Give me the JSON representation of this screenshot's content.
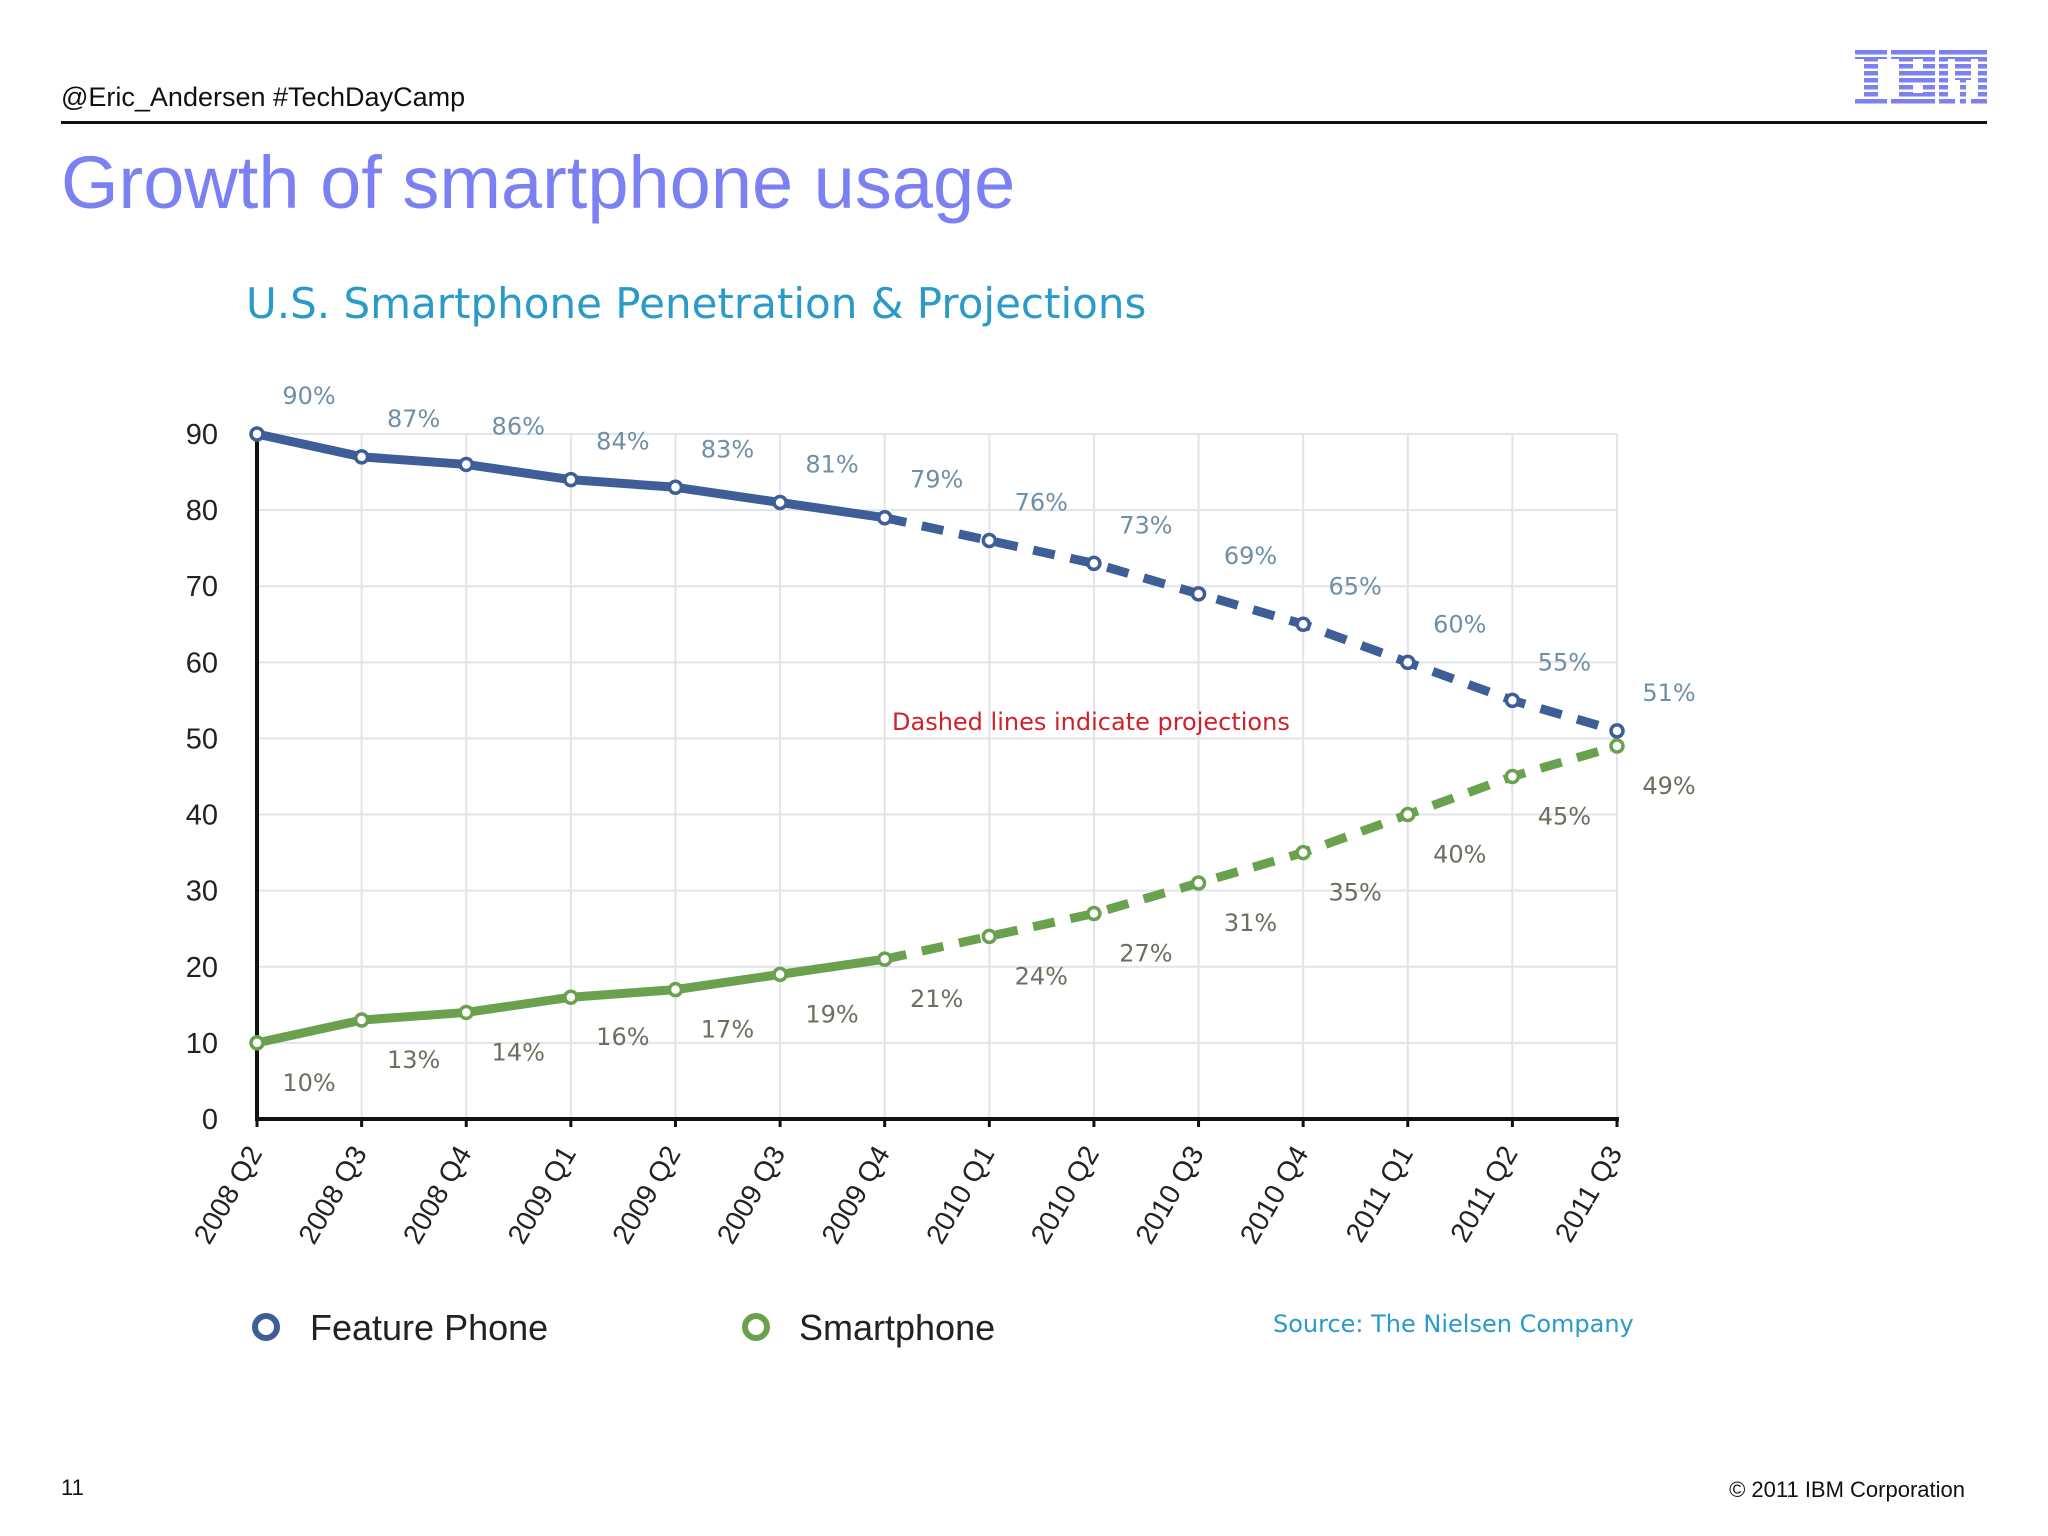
{
  "header": {
    "handle": "@Eric_Andersen #TechDayCamp",
    "logo_text": "IBM",
    "logo_color": "#7b80f2"
  },
  "slide": {
    "title": "Growth of smartphone usage",
    "page_number": "11",
    "copyright": "© 2011 IBM Corporation"
  },
  "chart_data": {
    "type": "line",
    "title": "U.S. Smartphone Penetration & Projections",
    "annotation": "Dashed lines indicate projections",
    "source": "Source: The Nielsen Company",
    "categories": [
      "2008 Q2",
      "2008 Q3",
      "2008 Q4",
      "2009 Q1",
      "2009 Q2",
      "2009 Q3",
      "2009 Q4",
      "2010 Q1",
      "2010 Q2",
      "2010 Q3",
      "2010 Q4",
      "2011 Q1",
      "2011 Q2",
      "2011 Q3"
    ],
    "projection_starts_after": "2009 Q4",
    "ylim": [
      0,
      90
    ],
    "yticks": [
      0,
      10,
      20,
      30,
      40,
      50,
      60,
      70,
      80,
      90
    ],
    "grid": true,
    "legend": "bottom-left",
    "series": [
      {
        "name": "Feature Phone",
        "color": "#3d5e96",
        "values": [
          90,
          87,
          86,
          84,
          83,
          81,
          79,
          76,
          73,
          69,
          65,
          60,
          55,
          51
        ],
        "labels": [
          "90%",
          "87%",
          "86%",
          "84%",
          "83%",
          "81%",
          "79%",
          "76%",
          "73%",
          "69%",
          "65%",
          "60%",
          "55%",
          "51%"
        ]
      },
      {
        "name": "Smartphone",
        "color": "#6aa14f",
        "values": [
          10,
          13,
          14,
          16,
          17,
          19,
          21,
          24,
          27,
          31,
          35,
          40,
          45,
          49
        ],
        "labels": [
          "10%",
          "13%",
          "14%",
          "16%",
          "17%",
          "19%",
          "21%",
          "24%",
          "27%",
          "31%",
          "35%",
          "40%",
          "45%",
          "49%"
        ]
      }
    ],
    "colors": {
      "title": "#2a9ac8",
      "annotation": "#d0202a",
      "source": "#2a9ac8",
      "data_label": "#6f8fa8"
    }
  }
}
